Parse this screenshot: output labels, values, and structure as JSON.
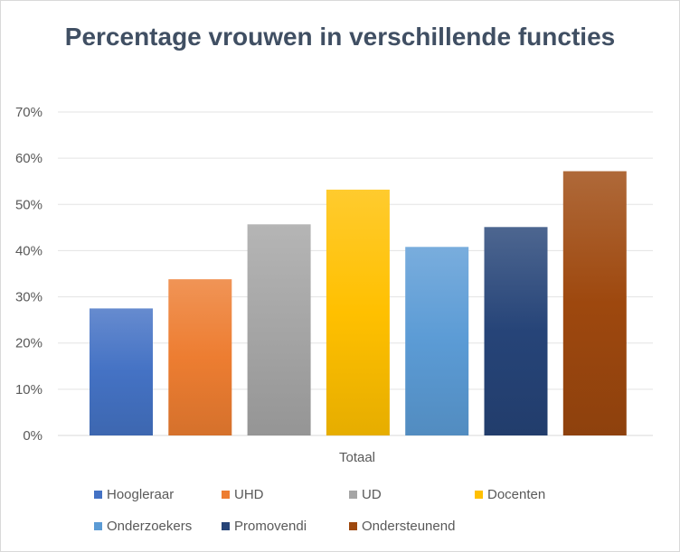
{
  "chart_data": {
    "type": "bar",
    "title": "Percentage vrouwen in verschillende functies",
    "categories": [
      "Totaal"
    ],
    "series": [
      {
        "name": "Hoogleraar",
        "values": [
          0.275
        ],
        "color": "#4472c4"
      },
      {
        "name": "UHD",
        "values": [
          0.338
        ],
        "color": "#ed7d31"
      },
      {
        "name": "UD",
        "values": [
          0.457
        ],
        "color": "#a5a5a5"
      },
      {
        "name": "Docenten",
        "values": [
          0.532
        ],
        "color": "#ffc000"
      },
      {
        "name": "Onderzoekers",
        "values": [
          0.408
        ],
        "color": "#5b9bd5"
      },
      {
        "name": "Promovendi",
        "values": [
          0.451
        ],
        "color": "#264478"
      },
      {
        "name": "Ondersteunend",
        "values": [
          0.572
        ],
        "color": "#9e480e"
      }
    ],
    "ylim": [
      0,
      0.7
    ],
    "yticks": [
      "0%",
      "10%",
      "20%",
      "30%",
      "40%",
      "50%",
      "60%",
      "70%"
    ],
    "xlabel": "",
    "ylabel": "",
    "grid": true,
    "legend": "bottom"
  }
}
